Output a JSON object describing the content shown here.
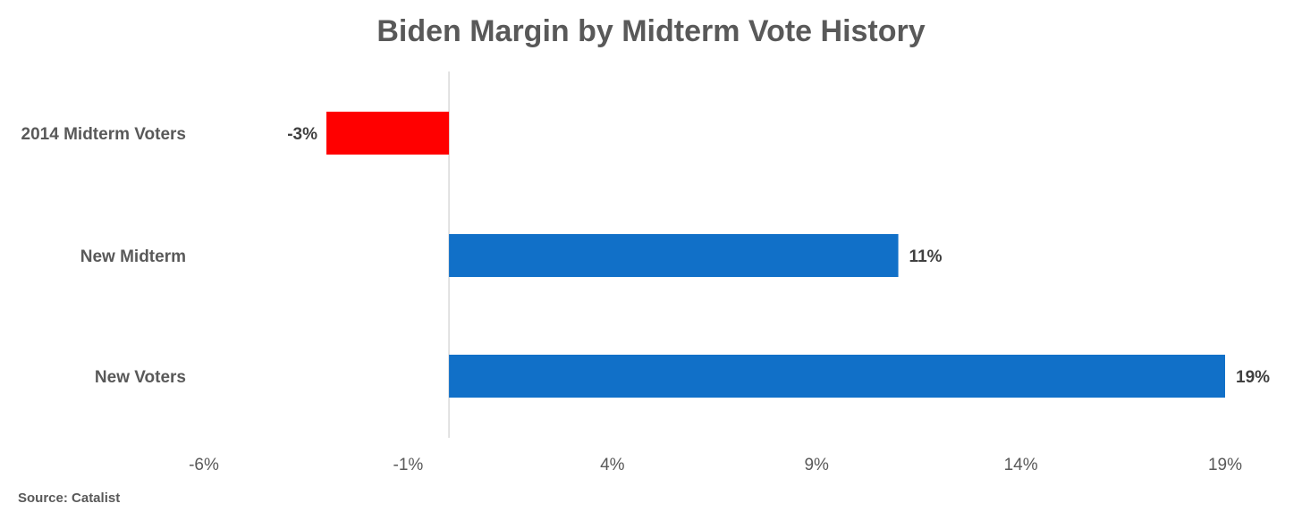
{
  "chart_data": {
    "type": "bar",
    "orientation": "horizontal",
    "title": "Biden Margin by Midterm Vote History",
    "categories": [
      "2014 Midterm Voters",
      "New Midterm",
      "New Voters"
    ],
    "values": [
      -3,
      11,
      19
    ],
    "data_labels": [
      "-3%",
      "11%",
      "19%"
    ],
    "bar_colors": [
      "#FF0000",
      "#1170C8",
      "#1170C8"
    ],
    "xlim": [
      -6,
      19
    ],
    "x_ticks": [
      -6,
      -1,
      4,
      9,
      14,
      19
    ],
    "x_tick_labels": [
      "-6%",
      "-1%",
      "4%",
      "9%",
      "14%",
      "19%"
    ],
    "grid": false,
    "legend": "none"
  },
  "source": "Source: Catalist"
}
